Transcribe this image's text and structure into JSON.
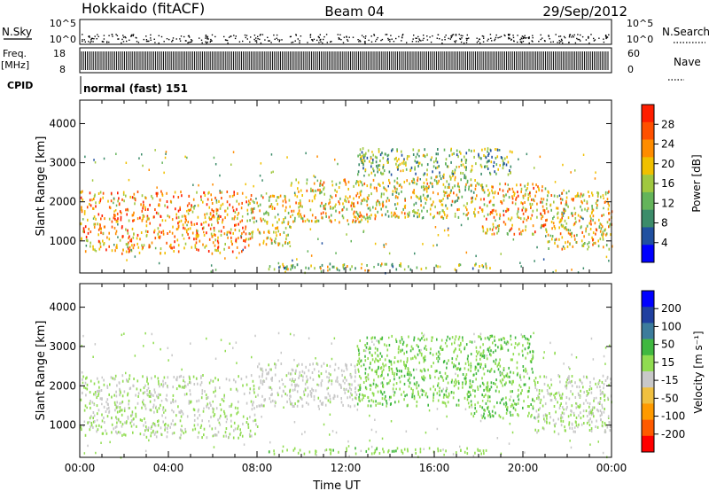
{
  "header": {
    "station": "Hokkaido (fitACF)",
    "beam": "Beam 04",
    "date": "29/Sep/2012"
  },
  "top_panels": {
    "nsky_label": "N.Sky",
    "nsky_ticks": [
      "10^5",
      "10^0"
    ],
    "nsearch_label": "N.Search",
    "nsearch_ticks": [
      "10^5",
      "10^0"
    ],
    "freq_label": "Freq.",
    "freq_unit": "[MHz]",
    "freq_ticks": [
      "18",
      "8"
    ],
    "nave_label": "Nave",
    "nave_ticks": [
      "60",
      "0"
    ],
    "cpid_label": "CPID",
    "cpid_value": "normal (fast) 151"
  },
  "colors": {
    "power_scale": [
      "#0000ff",
      "#2050a0",
      "#3c8c6a",
      "#64b45a",
      "#a0c840",
      "#f0c000",
      "#ff8c00",
      "#ff5000",
      "#ff1e00"
    ],
    "velocity_scale": [
      "#ff0000",
      "#ff5a00",
      "#ff9a00",
      "#f0c040",
      "#c8c8c8",
      "#90dc50",
      "#40b840",
      "#3c7c9c",
      "#2040a0",
      "#0000ff"
    ]
  },
  "chart_data": [
    {
      "type": "heatmap",
      "panel": "power",
      "xlabel": "",
      "ylabel": "Slant Range [km]",
      "x_range_hours_ut": [
        0,
        24
      ],
      "ylim": [
        180,
        4600
      ],
      "yticks": [
        "1000",
        "2000",
        "3000",
        "4000"
      ],
      "colorbar": {
        "label": "Power [dB]",
        "ticks": [
          "4",
          "8",
          "12",
          "16",
          "20",
          "24",
          "28"
        ],
        "range": [
          0,
          30
        ]
      },
      "echo_regions": [
        {
          "t_start": 0.0,
          "t_end": 7.5,
          "range_low": 700,
          "range_high": 2300,
          "level": 22
        },
        {
          "t_start": 7.5,
          "t_end": 9.5,
          "range_low": 900,
          "range_high": 2200,
          "level": 18
        },
        {
          "t_start": 9.5,
          "t_end": 13.5,
          "range_low": 1500,
          "range_high": 2600,
          "level": 18
        },
        {
          "t_start": 13.5,
          "t_end": 18.0,
          "range_low": 1600,
          "range_high": 2700,
          "level": 16
        },
        {
          "t_start": 18.0,
          "t_end": 21.0,
          "range_low": 1200,
          "range_high": 2500,
          "level": 20
        },
        {
          "t_start": 21.0,
          "t_end": 24.0,
          "range_low": 800,
          "range_high": 2300,
          "level": 18
        },
        {
          "t_start": 12.5,
          "t_end": 19.5,
          "range_low": 2700,
          "range_high": 3400,
          "level": 12
        },
        {
          "t_start": 8.5,
          "t_end": 18.5,
          "range_low": 300,
          "range_high": 450,
          "level": 14
        }
      ]
    },
    {
      "type": "heatmap",
      "panel": "velocity",
      "xlabel": "Time UT",
      "ylabel": "Slant Range [km]",
      "x_range_hours_ut": [
        0,
        24
      ],
      "xticks": [
        "00:00",
        "04:00",
        "08:00",
        "12:00",
        "16:00",
        "20:00",
        "00:00"
      ],
      "ylim": [
        180,
        4600
      ],
      "yticks": [
        "1000",
        "2000",
        "3000",
        "4000"
      ],
      "colorbar": {
        "label": "Velocity [m s⁻¹]",
        "ticks": [
          "200",
          "100",
          "50",
          "15",
          "-15",
          "-50",
          "-100",
          "-200"
        ],
        "range": [
          -250,
          250
        ]
      },
      "echo_regions": [
        {
          "t_start": 0.0,
          "t_end": 8.0,
          "range_low": 700,
          "range_high": 2300,
          "level": 0
        },
        {
          "t_start": 8.0,
          "t_end": 12.5,
          "range_low": 1500,
          "range_high": 2600,
          "level": -20
        },
        {
          "t_start": 12.5,
          "t_end": 17.5,
          "range_low": 1500,
          "range_high": 3300,
          "level": 40
        },
        {
          "t_start": 17.5,
          "t_end": 20.5,
          "range_low": 1200,
          "range_high": 3300,
          "level": 45
        },
        {
          "t_start": 20.5,
          "t_end": 24.0,
          "range_low": 800,
          "range_high": 2300,
          "level": 0
        },
        {
          "t_start": 8.5,
          "t_end": 18.5,
          "range_low": 300,
          "range_high": 450,
          "level": 30
        }
      ]
    }
  ]
}
